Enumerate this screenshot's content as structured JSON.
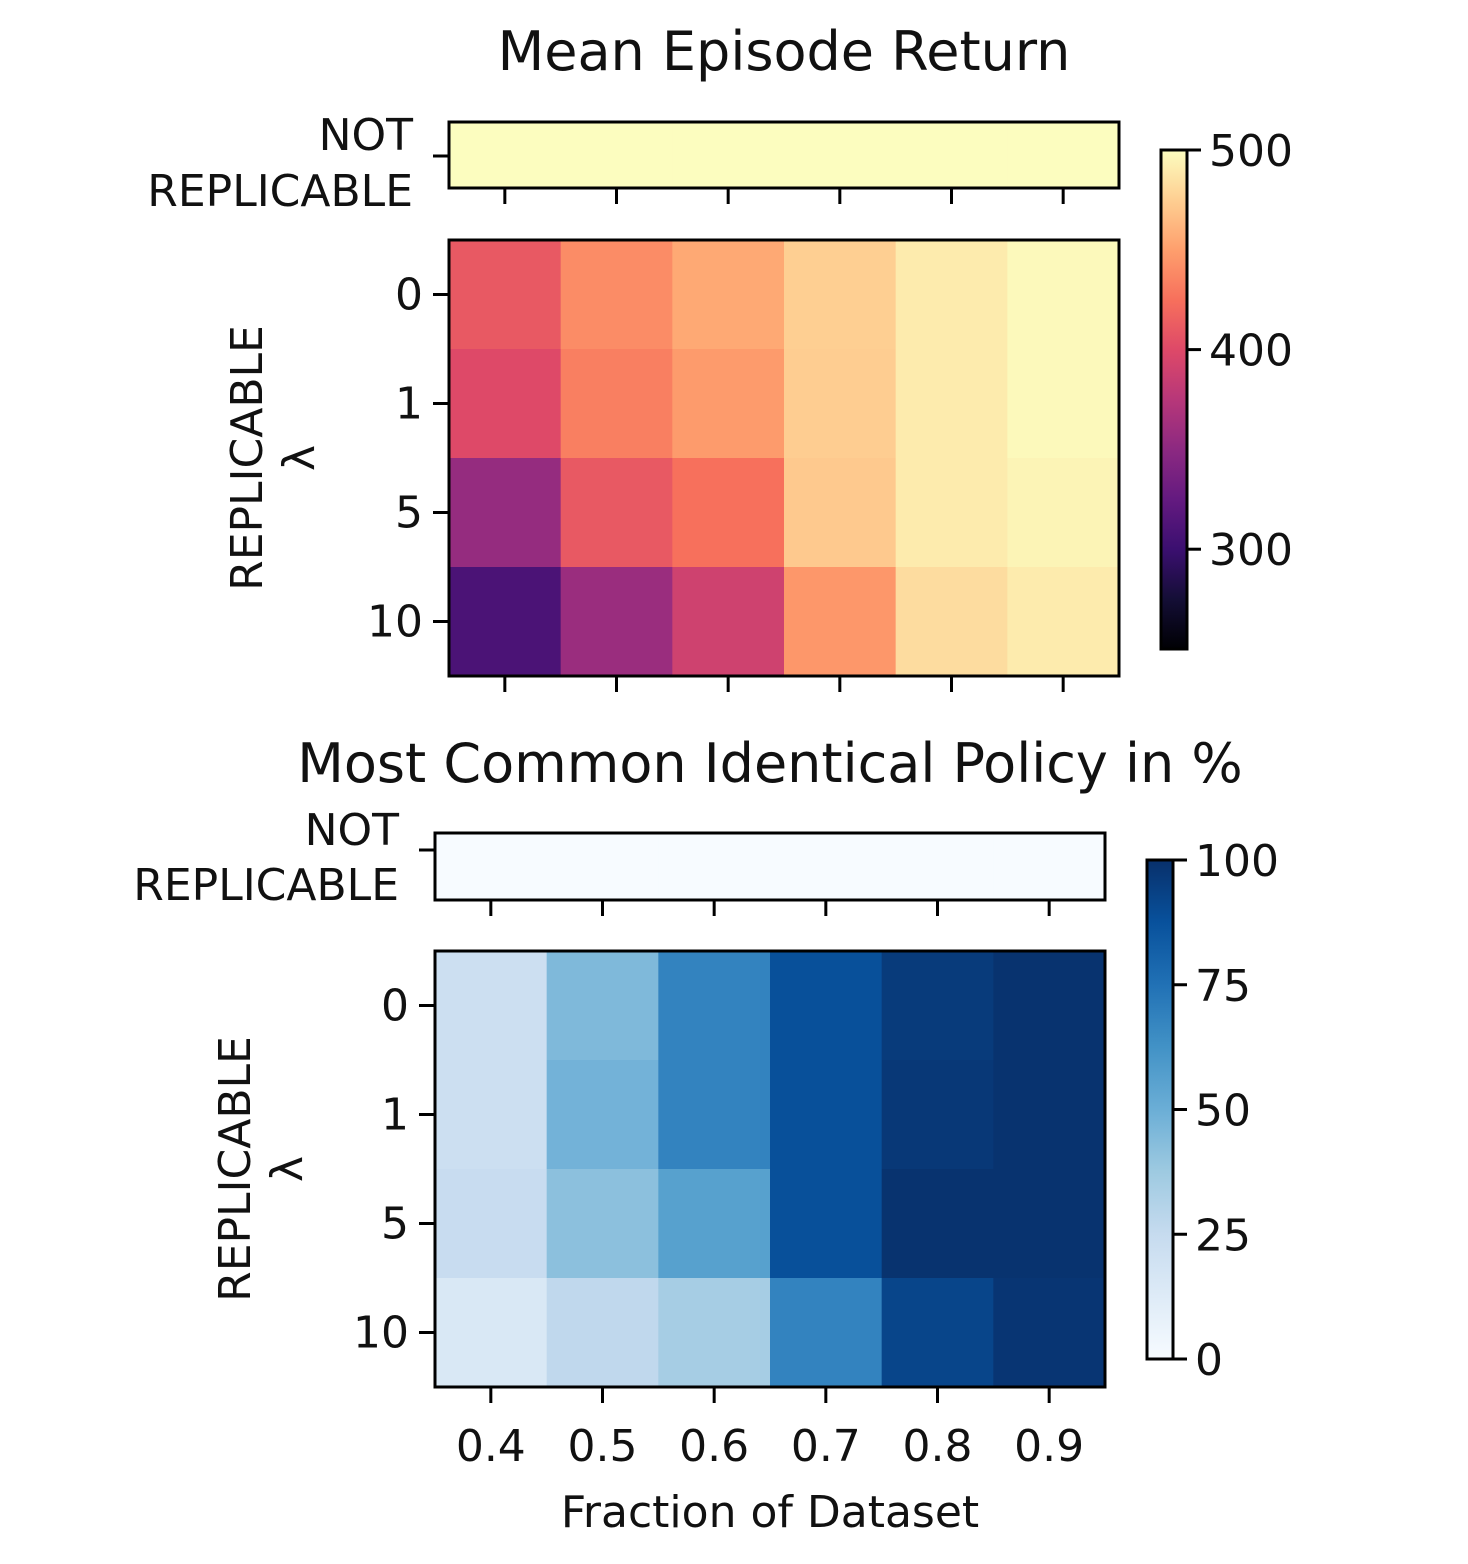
{
  "chart_data": [
    {
      "type": "heatmap",
      "title": "Mean Episode Return",
      "x_categories": [
        "0.4",
        "0.5",
        "0.6",
        "0.7",
        "0.8",
        "0.9"
      ],
      "top_row_label": [
        "NOT",
        "REPLICABLE"
      ],
      "top_row_values": [
        500,
        500,
        500,
        500,
        500,
        500
      ],
      "ylabel": [
        "REPLICABLE",
        "λ"
      ],
      "y_categories": [
        "0",
        "1",
        "5",
        "10"
      ],
      "values": [
        [
          410,
          440,
          455,
          475,
          490,
          498
        ],
        [
          400,
          433,
          448,
          474,
          490,
          498
        ],
        [
          355,
          410,
          425,
          472,
          490,
          495
        ],
        [
          310,
          358,
          390,
          446,
          482,
          490
        ]
      ],
      "colormap": "magma",
      "colorbar": {
        "min": 250,
        "max": 500,
        "ticks": [
          "300",
          "400",
          "500"
        ],
        "tick_values": [
          300,
          400,
          500
        ]
      }
    },
    {
      "type": "heatmap",
      "title": "Most Common Identical Policy in %",
      "x_categories": [
        "0.4",
        "0.5",
        "0.6",
        "0.7",
        "0.8",
        "0.9"
      ],
      "top_row_label": [
        "NOT",
        "REPLICABLE"
      ],
      "top_row_values": [
        0,
        0,
        0,
        0,
        0,
        0
      ],
      "ylabel": [
        "REPLICABLE",
        "λ"
      ],
      "y_categories": [
        "0",
        "1",
        "5",
        "10"
      ],
      "values": [
        [
          22,
          45,
          68,
          88,
          96,
          99
        ],
        [
          22,
          48,
          68,
          88,
          97,
          99
        ],
        [
          24,
          42,
          56,
          88,
          99,
          99
        ],
        [
          15,
          27,
          35,
          68,
          92,
          98
        ]
      ],
      "colormap": "blues",
      "colorbar": {
        "min": 0,
        "max": 100,
        "ticks": [
          "0",
          "25",
          "50",
          "75",
          "100"
        ],
        "tick_values": [
          0,
          25,
          50,
          75,
          100
        ]
      }
    }
  ],
  "xlabel": "Fraction of Dataset"
}
